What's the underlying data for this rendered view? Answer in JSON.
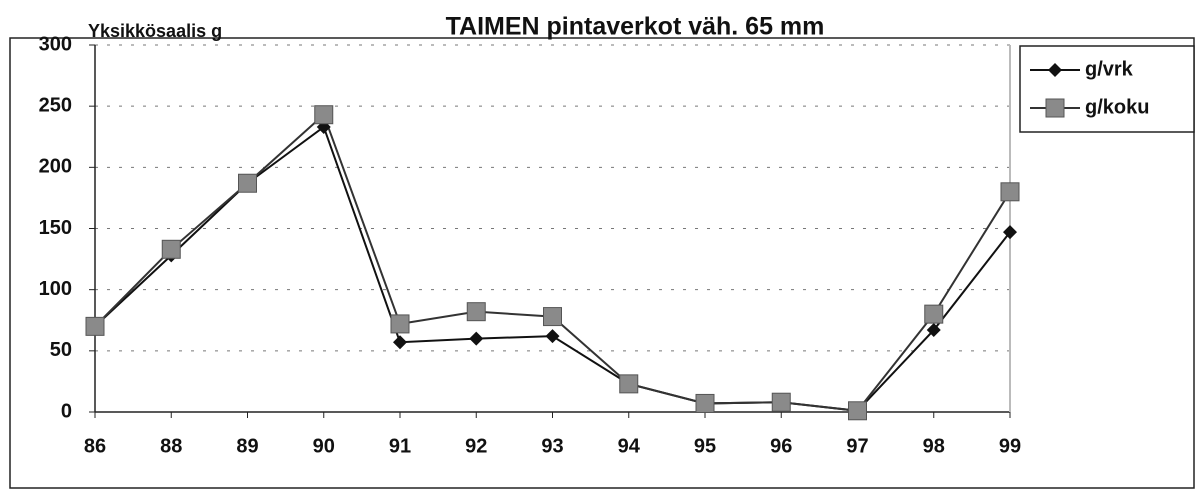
{
  "chart_data": {
    "type": "line",
    "title": "TAIMEN pintaverkot väh. 65 mm",
    "y_label": "Yksikkösaalis g",
    "categories": [
      "86",
      "88",
      "89",
      "90",
      "91",
      "92",
      "93",
      "94",
      "95",
      "96",
      "97",
      "98",
      "99"
    ],
    "series": [
      {
        "name": "g/vrk",
        "color": "#111111",
        "marker": "diamond",
        "values": [
          70,
          128,
          187,
          233,
          57,
          60,
          62,
          23,
          7,
          8,
          1,
          67,
          147
        ]
      },
      {
        "name": "g/koku",
        "color": "#8a8a8a",
        "marker": "square",
        "values": [
          70,
          133,
          187,
          243,
          72,
          82,
          78,
          23,
          7,
          8,
          1,
          80,
          180
        ]
      }
    ],
    "ylim": [
      0,
      300
    ],
    "yticks": [
      0,
      50,
      100,
      150,
      200,
      250,
      300
    ],
    "grid": true,
    "legend": "right"
  }
}
